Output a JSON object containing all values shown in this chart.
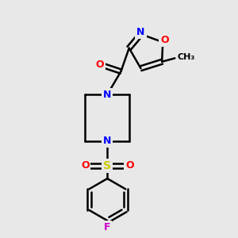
{
  "bg_color": "#e8e8e8",
  "bond_color": "#000000",
  "bond_width": 1.8,
  "atom_colors": {
    "N": "#0000ff",
    "O": "#ff0000",
    "F": "#cc00cc",
    "S": "#cccc00",
    "C": "#000000"
  },
  "font_size": 9,
  "fig_size": [
    3.0,
    3.0
  ],
  "dpi": 100,
  "xlim": [
    0,
    10
  ],
  "ylim": [
    0,
    10
  ]
}
